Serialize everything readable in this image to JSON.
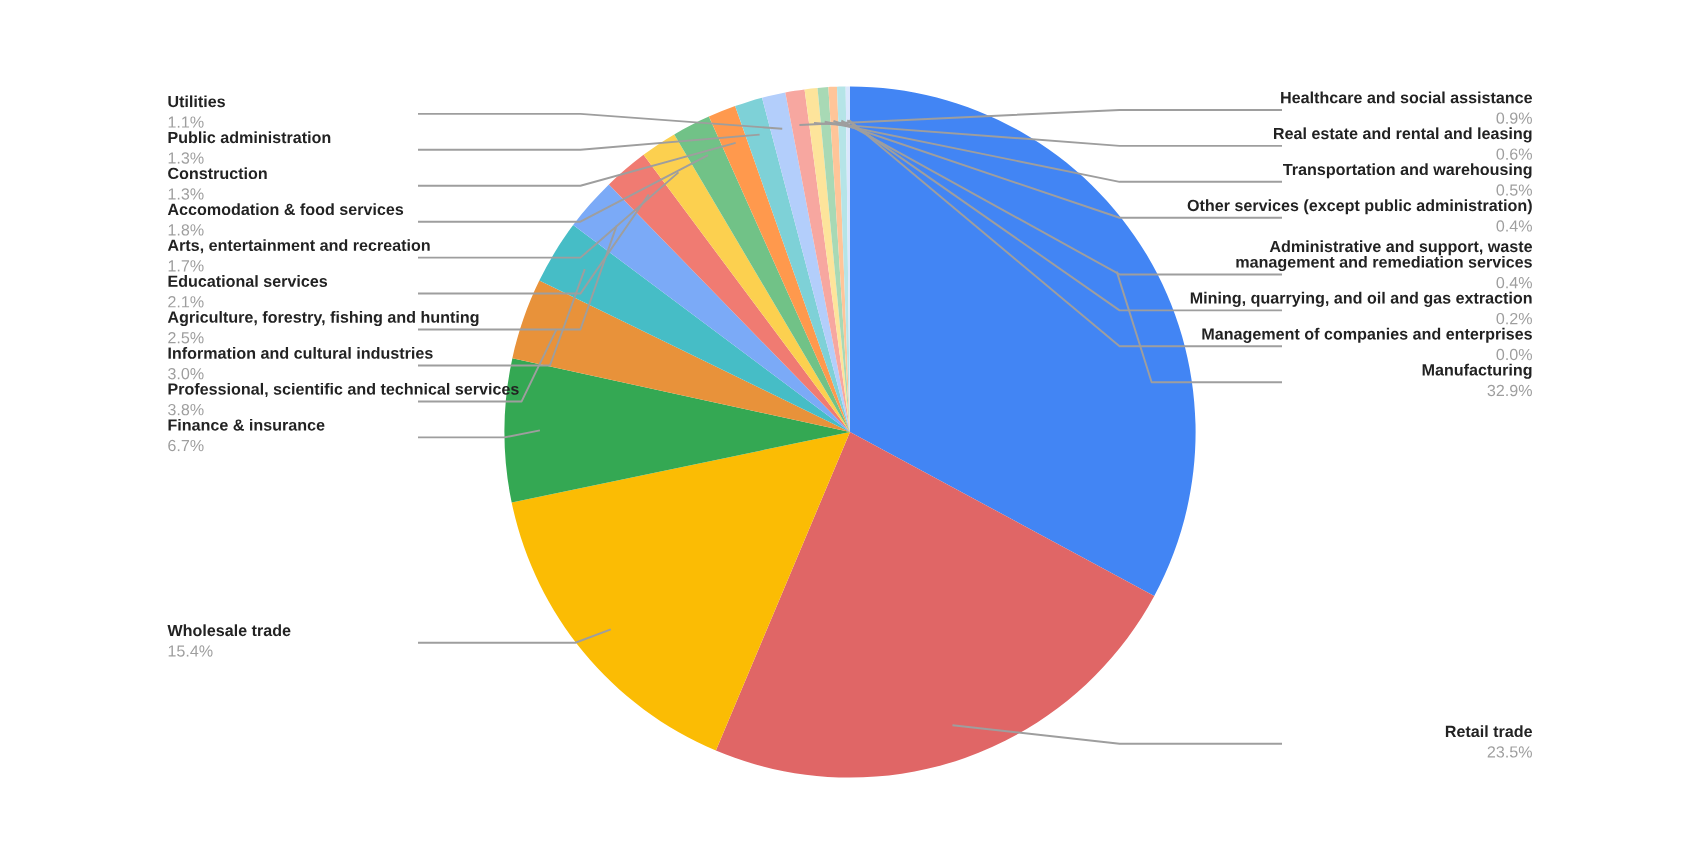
{
  "chart_data": {
    "type": "pie",
    "categories": [
      "Manufacturing",
      "Retail trade",
      "Wholesale trade",
      "Finance & insurance",
      "Professional, scientific and technical services",
      "Information and cultural industries",
      "Agriculture, forestry, fishing and hunting",
      "Educational services",
      "Arts, entertainment and recreation",
      "Accomodation & food services",
      "Construction",
      "Public administration",
      "Utilities",
      "Healthcare and social assistance",
      "Real estate and rental and leasing",
      "Transportation and warehousing",
      "Other services (except public administration)",
      "Administrative and support, waste\nmanagement and remediation services",
      "Mining, quarrying, and oil and gas extraction",
      "Management of companies and enterprises"
    ],
    "values": [
      32.9,
      23.5,
      15.4,
      6.7,
      3.8,
      3.0,
      2.5,
      2.1,
      1.7,
      1.8,
      1.3,
      1.3,
      1.1,
      0.9,
      0.6,
      0.5,
      0.4,
      0.4,
      0.2,
      0.0
    ],
    "value_labels": [
      "32.9%",
      "23.5%",
      "15.4%",
      "6.7%",
      "3.8%",
      "3.0%",
      "2.5%",
      "2.1%",
      "1.7%",
      "1.8%",
      "1.3%",
      "1.3%",
      "1.1%",
      "0.9%",
      "0.6%",
      "0.5%",
      "0.4%",
      "0.4%",
      "0.2%",
      "0.0%"
    ],
    "colors": [
      "#4285f4",
      "#e06666",
      "#fbbc04",
      "#34a853",
      "#e8923a",
      "#46bdc6",
      "#7baaf7",
      "#f07b72",
      "#fcd04f",
      "#71c287",
      "#ff994d",
      "#7ed1d7",
      "#b3cefb",
      "#f7a7a0",
      "#fde49b",
      "#a8d9b5",
      "#ffc599",
      "#b5e4e7",
      "#d9e7fd",
      "#fbd3cf"
    ]
  }
}
